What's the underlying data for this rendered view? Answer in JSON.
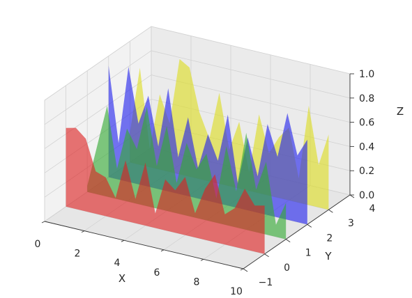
{
  "chart_data": {
    "type": "area",
    "title": "",
    "xlabel": "X",
    "ylabel": "Y",
    "zlabel": "Z",
    "xlim": [
      0,
      10
    ],
    "ylim": [
      -1,
      4
    ],
    "zlim": [
      0,
      1
    ],
    "xticks": [
      "0",
      "2",
      "4",
      "6",
      "8",
      "10"
    ],
    "yticks": [
      "−1",
      "0",
      "1",
      "2",
      "3",
      "4"
    ],
    "zticks": [
      "0.0",
      "0.2",
      "0.4",
      "0.6",
      "0.8",
      "1.0"
    ],
    "grid": true,
    "x": [
      0,
      0.5,
      1,
      1.5,
      2,
      2.5,
      3,
      3.5,
      4,
      4.5,
      5,
      5.5,
      6,
      6.5,
      7,
      7.5,
      8,
      8.5,
      9,
      9.5,
      10
    ],
    "series": [
      {
        "y": 0,
        "color": "#dd2222",
        "values": [
          0.65,
          0.67,
          0.6,
          0.35,
          0.32,
          0.17,
          0.5,
          0.2,
          0.52,
          0.12,
          0.42,
          0.35,
          0.48,
          0.2,
          0.42,
          0.56,
          0.25,
          0.32,
          0.5,
          0.38,
          0.4
        ]
      },
      {
        "y": 1,
        "color": "#33aa33",
        "values": [
          0.05,
          0.4,
          0.75,
          0.25,
          0.6,
          0.45,
          0.82,
          0.35,
          0.7,
          0.25,
          0.6,
          0.4,
          0.55,
          0.2,
          0.65,
          0.3,
          0.8,
          0.35,
          0.6,
          0.1,
          0.3
        ]
      },
      {
        "y": 2,
        "color": "#2222ee",
        "values": [
          0.92,
          0.3,
          0.95,
          0.5,
          0.75,
          0.35,
          0.85,
          0.3,
          0.65,
          0.25,
          0.55,
          0.35,
          0.75,
          0.2,
          0.6,
          0.3,
          0.75,
          0.5,
          0.88,
          0.55,
          0.7
        ]
      },
      {
        "y": 3,
        "color": "#dddd22",
        "values": [
          0.25,
          0.8,
          0.15,
          0.62,
          0.4,
          0.95,
          0.9,
          0.55,
          0.35,
          0.75,
          0.3,
          0.55,
          0.15,
          0.65,
          0.35,
          0.5,
          0.6,
          0.2,
          0.82,
          0.35,
          0.62
        ]
      }
    ]
  }
}
